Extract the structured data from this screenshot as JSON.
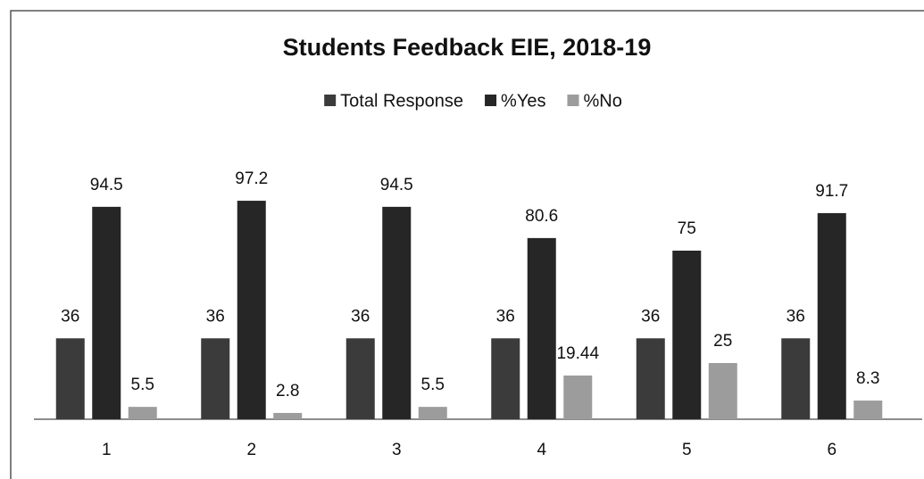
{
  "chart_data": {
    "type": "bar",
    "title": "Students Feedback EIE, 2018-19",
    "categories": [
      "1",
      "2",
      "3",
      "4",
      "5",
      "6"
    ],
    "series": [
      {
        "name": "Total Response",
        "color": "#3b3b3b",
        "values": [
          36,
          36,
          36,
          36,
          36,
          36
        ]
      },
      {
        "name": "%Yes",
        "color": "#262626",
        "values": [
          94.5,
          97.2,
          94.5,
          80.6,
          75,
          91.7
        ]
      },
      {
        "name": "%No",
        "color": "#9c9c9c",
        "values": [
          5.5,
          2.8,
          5.5,
          19.44,
          25,
          8.3
        ]
      }
    ],
    "ylim": [
      0,
      100
    ],
    "legend": "top",
    "data_labels": true
  }
}
